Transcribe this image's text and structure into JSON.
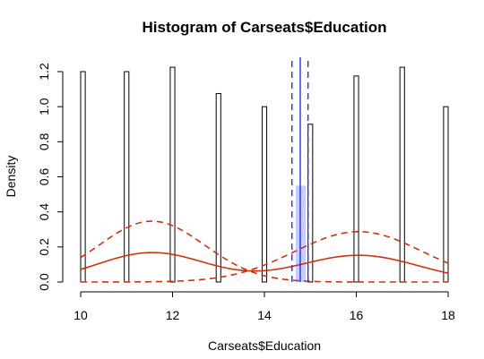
{
  "chart_data": {
    "type": "bar",
    "title": "Histogram of Carseats$Education",
    "xlabel": "Carseats$Education",
    "ylabel": "Density",
    "xlim": [
      10,
      18
    ],
    "ylim": [
      0,
      1.2
    ],
    "x_ticks": [
      "10",
      "12",
      "14",
      "16",
      "18"
    ],
    "y_ticks": [
      "0.0",
      "0.2",
      "0.4",
      "0.6",
      "0.8",
      "1.0",
      "1.2"
    ],
    "categories": [
      "10",
      "11",
      "12",
      "13",
      "14",
      "15",
      "16",
      "17",
      "18"
    ],
    "values": [
      1.2,
      1.2,
      1.225,
      1.075,
      1.0,
      0.9,
      1.175,
      1.225,
      1.0
    ],
    "bar_width": 0.1,
    "colors": {
      "bars": "#000000",
      "density": "#cc3311",
      "vlines": "#2233dd",
      "band": "#c8ccff"
    },
    "density_curves": [
      {
        "style": "solid",
        "weights": [
          0.5,
          0.5
        ],
        "means": [
          11.55,
          16.05
        ],
        "sds": [
          1.19,
          1.31
        ]
      },
      {
        "style": "dashed",
        "weights": [
          1.0,
          0
        ],
        "means": [
          11.55,
          16.05
        ],
        "sds": [
          1.15,
          1.35
        ]
      },
      {
        "style": "dashed",
        "weights": [
          0,
          1.0
        ],
        "means": [
          11.55,
          16.05
        ],
        "sds": [
          1.15,
          1.39
        ]
      }
    ],
    "vlines": [
      {
        "x": 14.78,
        "style": "solid"
      },
      {
        "x": 14.6,
        "style": "dashed"
      },
      {
        "x": 14.95,
        "style": "dashed"
      }
    ],
    "shaded_band": {
      "x0": 14.68,
      "x1": 14.9,
      "y0": 0,
      "y1": 0.55
    }
  }
}
